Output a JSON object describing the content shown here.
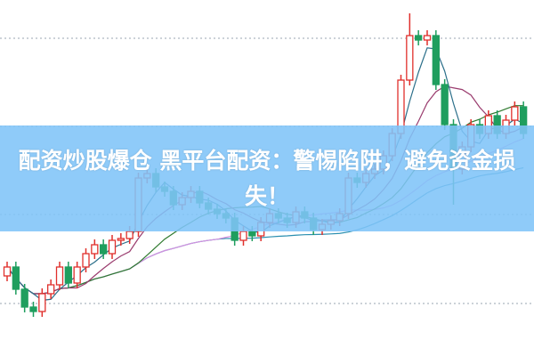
{
  "banner": {
    "title": "配资炒股爆仓 黑平台配资：警惕陷阱，避免资金损失！"
  },
  "chart_data": {
    "type": "candlestick",
    "grid": true,
    "colors": {
      "up": "#e0302c",
      "down": "#1f9e5e",
      "ma5": "#2b6f8a",
      "ma10": "#9a3c6e",
      "ma20": "#2f7a2f",
      "ma30": "#d690e0",
      "ma60": "#2a8fb0"
    },
    "open": [
      90,
      100,
      75,
      55,
      50,
      70,
      80,
      100,
      82,
      100,
      115,
      125,
      115,
      130,
      132,
      140,
      200,
      205,
      190,
      185,
      170,
      178,
      185,
      172,
      165,
      160,
      155,
      130,
      140,
      135,
      150,
      160,
      155,
      150,
      162,
      155,
      142,
      148,
      152,
      160,
      200,
      195,
      205,
      210,
      225,
      250,
      310,
      360,
      355,
      360,
      305,
      260,
      210,
      235,
      260,
      250,
      270,
      250,
      265,
      280
    ],
    "close": [
      100,
      75,
      55,
      50,
      70,
      80,
      100,
      82,
      100,
      115,
      125,
      115,
      130,
      132,
      140,
      200,
      205,
      190,
      185,
      170,
      178,
      185,
      172,
      165,
      160,
      155,
      130,
      140,
      135,
      150,
      160,
      155,
      150,
      162,
      155,
      142,
      148,
      152,
      160,
      200,
      195,
      205,
      210,
      225,
      250,
      310,
      360,
      355,
      360,
      305,
      260,
      210,
      235,
      260,
      250,
      270,
      250,
      265,
      280,
      250
    ],
    "high": [
      106,
      106,
      81,
      61,
      76,
      86,
      106,
      106,
      106,
      121,
      131,
      131,
      136,
      138,
      146,
      206,
      211,
      211,
      196,
      191,
      184,
      191,
      191,
      178,
      171,
      166,
      161,
      146,
      146,
      156,
      166,
      166,
      161,
      168,
      168,
      161,
      154,
      158,
      166,
      206,
      206,
      211,
      216,
      231,
      256,
      316,
      385,
      366,
      366,
      366,
      311,
      266,
      241,
      266,
      266,
      276,
      276,
      271,
      286,
      286
    ],
    "low": [
      84,
      69,
      49,
      44,
      44,
      64,
      74,
      76,
      76,
      94,
      109,
      109,
      109,
      124,
      126,
      134,
      194,
      184,
      179,
      164,
      164,
      172,
      166,
      159,
      154,
      149,
      124,
      124,
      129,
      129,
      144,
      149,
      144,
      144,
      149,
      136,
      136,
      142,
      146,
      154,
      189,
      189,
      199,
      204,
      219,
      244,
      304,
      349,
      349,
      299,
      254,
      170,
      204,
      229,
      244,
      244,
      244,
      244,
      259,
      244
    ],
    "gridlines": [
      357,
      258,
      159,
      59
    ]
  }
}
